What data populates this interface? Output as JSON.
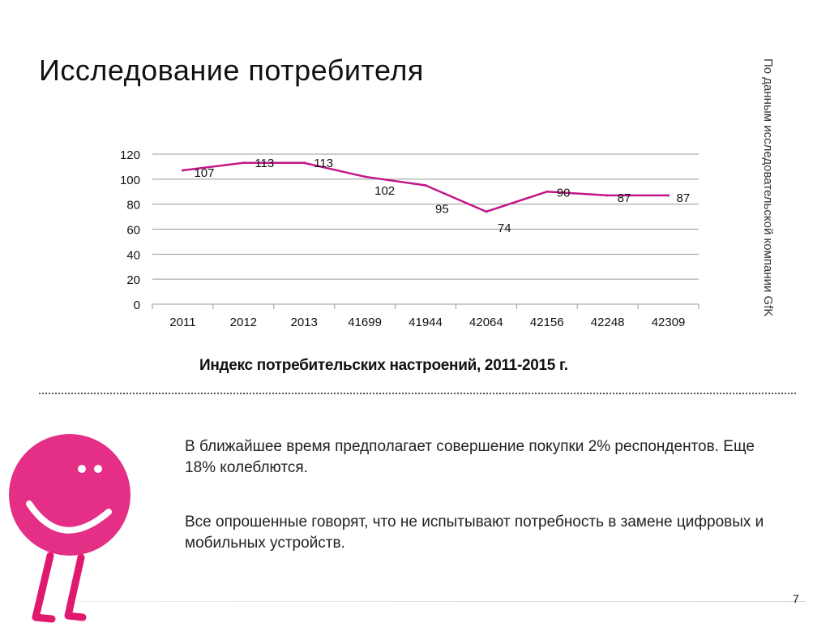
{
  "slide": {
    "title": "Исследование потребителя",
    "side_note": "По данным исследовательской компании GfK",
    "chart_caption": "Индекс потребительских настроений, 2011-2015 г.",
    "paragraph1": "В ближайшее время предполагает совершение покупки 2% респондентов. Еще 18% колеблются.",
    "paragraph2": "Все опрошенные говорят, что не испытывают потребность в замене цифровых и мобильных устройств.",
    "page_number": "7"
  },
  "colors": {
    "line": "#c4168a",
    "mascot_face": "#e52e86",
    "mascot_legs": "#e0196f",
    "grid": "#999999"
  },
  "chart_data": {
    "type": "line",
    "title": "Индекс потребительских настроений, 2011-2015 г.",
    "xlabel": "",
    "ylabel": "",
    "categories": [
      "2011",
      "2012",
      "2013",
      "41699",
      "41944",
      "42064",
      "42156",
      "42248",
      "42309"
    ],
    "series": [
      {
        "name": "Индекс потребительских настроений",
        "values": [
          107,
          113,
          113,
          102,
          95,
          74,
          90,
          87,
          87
        ],
        "labels": [
          "107",
          "113",
          "113",
          "102",
          "95",
          "74",
          "90",
          "87",
          "87"
        ]
      }
    ],
    "ylim": [
      0,
      120
    ],
    "yticks": [
      0,
      20,
      40,
      60,
      80,
      100,
      120
    ],
    "grid": true,
    "legend": "none"
  }
}
